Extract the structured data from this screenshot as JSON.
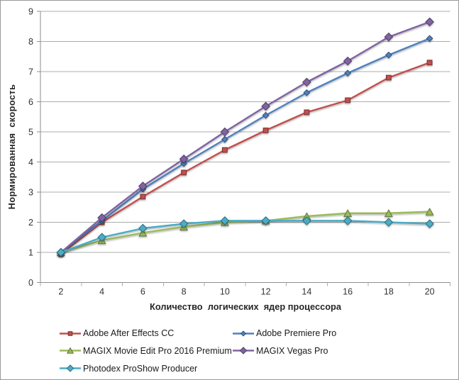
{
  "chart_data": {
    "type": "line",
    "title": "",
    "xlabel": "Количество  логических  ядер процессора",
    "ylabel": "Нормированная  скорость",
    "x": [
      2,
      4,
      6,
      8,
      10,
      12,
      14,
      16,
      18,
      20
    ],
    "x_tick_labels": [
      "2",
      "4",
      "6",
      "8",
      "10",
      "12",
      "14",
      "16",
      "18",
      "20"
    ],
    "y_tick_labels": [
      "0",
      "1",
      "2",
      "3",
      "4",
      "5",
      "6",
      "7",
      "8",
      "9"
    ],
    "ylim": [
      0,
      9
    ],
    "ytick_step": 1,
    "grid": true,
    "legend_position": "bottom",
    "series": [
      {
        "name": "Adobe After Effects CC",
        "color": "#C0504D",
        "marker": "square",
        "values": [
          0.95,
          2.0,
          2.85,
          3.65,
          4.4,
          5.05,
          5.65,
          6.05,
          6.8,
          7.3
        ]
      },
      {
        "name": "Adobe Premiere Pro",
        "color": "#4F81BD",
        "marker": "diamond-small",
        "values": [
          1.0,
          2.05,
          3.1,
          3.95,
          4.75,
          5.55,
          6.3,
          6.95,
          7.55,
          8.1
        ]
      },
      {
        "name": "MAGIX Movie Edit Pro 2016 Premium",
        "color": "#9BBB59",
        "marker": "triangle",
        "values": [
          1.0,
          1.4,
          1.65,
          1.85,
          2.0,
          2.05,
          2.2,
          2.3,
          2.3,
          2.35
        ]
      },
      {
        "name": "MAGIX Vegas Pro",
        "color": "#8064A2",
        "marker": "diamond",
        "values": [
          1.0,
          2.15,
          3.2,
          4.1,
          5.0,
          5.85,
          6.65,
          7.35,
          8.15,
          8.65
        ]
      },
      {
        "name": "Photodex ProShow Producer",
        "color": "#4BACC6",
        "marker": "diamond",
        "values": [
          1.0,
          1.5,
          1.8,
          1.95,
          2.05,
          2.05,
          2.05,
          2.05,
          2.0,
          1.95
        ]
      }
    ],
    "colors": {
      "gridline": "#ACACAC",
      "axis": "#8E8E8E",
      "tick_text": "#333333",
      "frame_border": "#989898",
      "background": "#FFFFFF"
    }
  }
}
